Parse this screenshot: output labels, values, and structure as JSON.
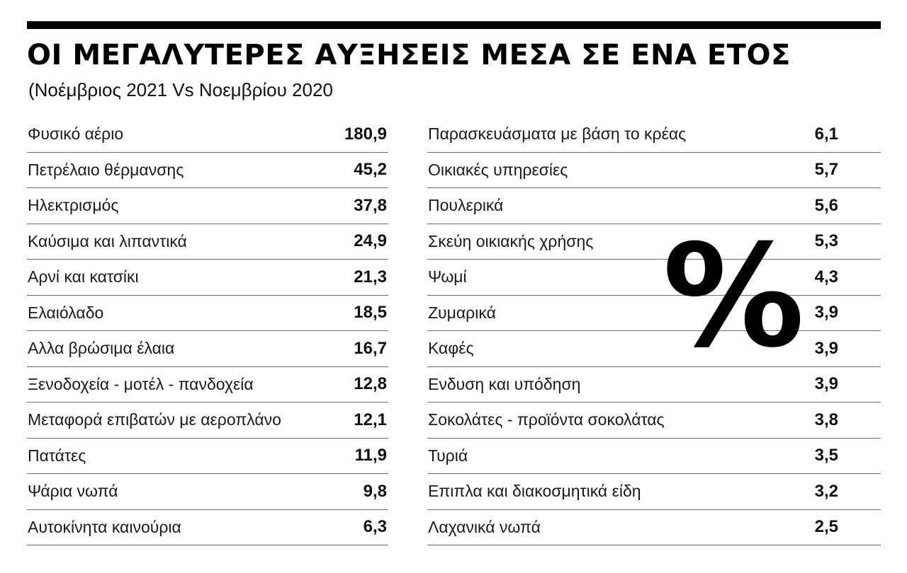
{
  "header": {
    "title": "ΟΙ ΜΕΓΑΛΥΤΕΡΕΣ ΑΥΞΗΣΕΙΣ ΜΕΣΑ ΣΕ ΕΝΑ ΕΤΟΣ",
    "subtitle": "(Νοέμβριος 2021 Vs Νοεμβρίου 2020"
  },
  "percent_symbol": "%",
  "chart_data": {
    "type": "table",
    "title": "ΟΙ ΜΕΓΑΛΥΤΕΡΕΣ ΑΥΞΗΣΕΙΣ ΜΕΣΑ ΣΕ ΕΝΑ ΕΤΟΣ",
    "subtitle": "(Νοέμβριος 2021 Vs Νοεμβρίου 2020",
    "unit": "%",
    "left_column": [
      {
        "label": "Φυσικό αέριο",
        "value": "180,9"
      },
      {
        "label": "Πετρέλαιο θέρμανσης",
        "value": "45,2"
      },
      {
        "label": "Ηλεκτρισμός",
        "value": "37,8"
      },
      {
        "label": "Καύσιμα και λιπαντικά",
        "value": "24,9"
      },
      {
        "label": "Αρνί και κατσίκι",
        "value": "21,3"
      },
      {
        "label": "Ελαιόλαδο",
        "value": "18,5"
      },
      {
        "label": "Αλλα βρώσιμα έλαια",
        "value": "16,7"
      },
      {
        "label": "Ξενοδοχεία - μοτέλ - πανδοχεία",
        "value": "12,8"
      },
      {
        "label": "Μεταφορά επιβατών με αεροπλάνο",
        "value": "12,1"
      },
      {
        "label": "Πατάτες",
        "value": "11,9"
      },
      {
        "label": "Ψάρια νωπά",
        "value": "9,8"
      },
      {
        "label": "Αυτοκίνητα καινούρια",
        "value": "6,3"
      }
    ],
    "right_column": [
      {
        "label": "Παρασκευάσματα με βάση το κρέας",
        "value": "6,1"
      },
      {
        "label": "Οικιακές υπηρεσίες",
        "value": "5,7"
      },
      {
        "label": "Πουλερικά",
        "value": "5,6"
      },
      {
        "label": "Σκεύη οικιακής χρήσης",
        "value": "5,3"
      },
      {
        "label": "Ψωμί",
        "value": "4,3"
      },
      {
        "label": "Ζυμαρικά",
        "value": "3,9"
      },
      {
        "label": "Καφές",
        "value": "3,9"
      },
      {
        "label": "Ενδυση και υπόδηση",
        "value": "3,9"
      },
      {
        "label": "Σοκολάτες - προϊόντα σοκολάτας",
        "value": "3,8"
      },
      {
        "label": "Τυριά",
        "value": "3,5"
      },
      {
        "label": "Επιπλα και διακοσμητικά είδη",
        "value": "3,2"
      },
      {
        "label": "Λαχανικά νωπά",
        "value": "2,5"
      }
    ]
  }
}
